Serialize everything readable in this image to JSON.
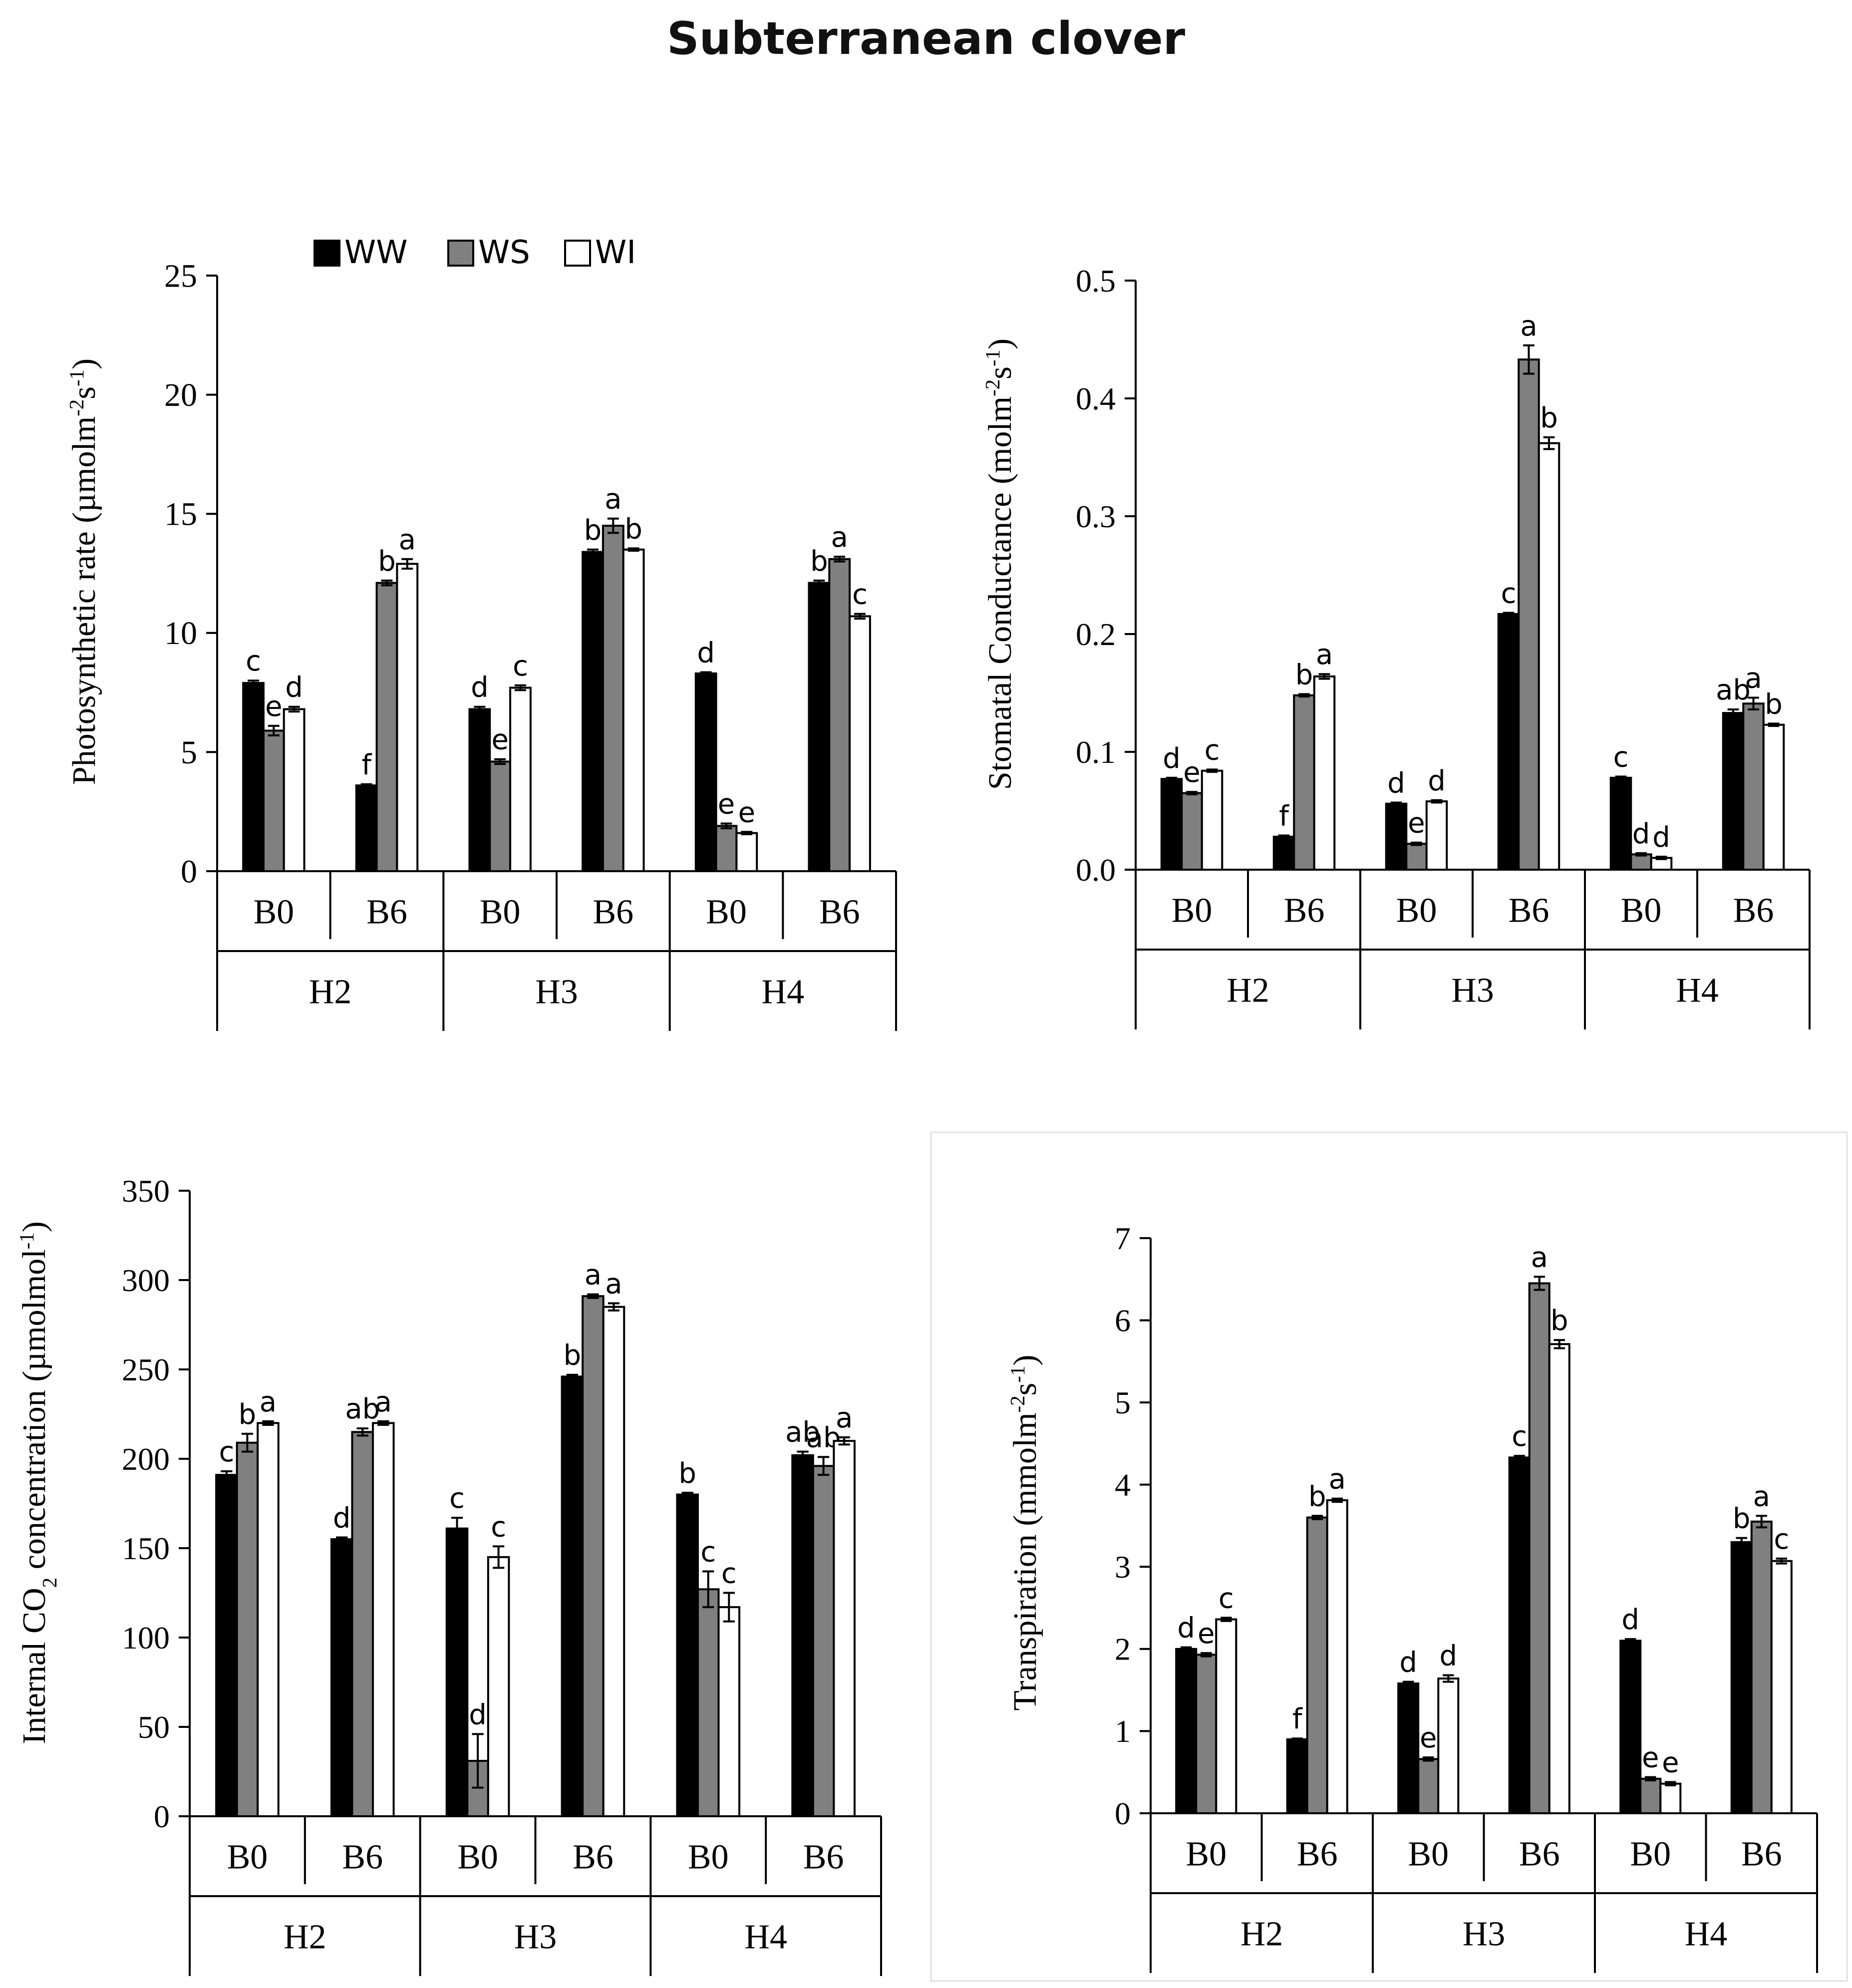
{
  "page": {
    "title": "Subterranean clover"
  },
  "colors": {
    "WW": "#000000",
    "WS": "#808080",
    "WI": "#ffffff",
    "axis": "#000000"
  },
  "legend": [
    {
      "key": "WW",
      "label": "WW"
    },
    {
      "key": "WS",
      "label": "WS"
    },
    {
      "key": "WI",
      "label": "WI"
    }
  ],
  "chart_data": [
    {
      "id": "photo",
      "type": "bar",
      "ylabel": "Photosynthetic rate (µmolm-2s-1)",
      "ylabel_parts": [
        "Photosynthetic rate (µmolm",
        "-2",
        "s",
        "-1",
        ")"
      ],
      "ylim": [
        0,
        25
      ],
      "yticks": [
        0,
        5,
        10,
        15,
        20,
        25
      ],
      "ytick_labels": [
        "0",
        "5",
        "10",
        "15",
        "20",
        "25"
      ],
      "groups": [
        "H2",
        "H3",
        "H4"
      ],
      "categories": [
        "B0",
        "B6",
        "B0",
        "B6",
        "B0",
        "B6"
      ],
      "series": [
        {
          "name": "WW",
          "values": [
            7.9,
            3.6,
            6.8,
            13.4,
            8.3,
            12.1
          ],
          "errors": [
            0.1,
            0.05,
            0.1,
            0.1,
            0.05,
            0.1
          ],
          "letters": [
            "c",
            "f",
            "d",
            "b",
            "d",
            "b"
          ]
        },
        {
          "name": "WS",
          "values": [
            5.9,
            12.1,
            4.6,
            14.5,
            1.9,
            13.1
          ],
          "errors": [
            0.2,
            0.1,
            0.1,
            0.3,
            0.1,
            0.1
          ],
          "letters": [
            "e",
            "b",
            "e",
            "a",
            "e",
            "a"
          ]
        },
        {
          "name": "WI",
          "values": [
            6.8,
            12.9,
            7.7,
            13.5,
            1.6,
            10.7
          ],
          "errors": [
            0.1,
            0.2,
            0.1,
            0.05,
            0.05,
            0.1
          ],
          "letters": [
            "d",
            "a",
            "c",
            "b",
            "e",
            "c"
          ]
        }
      ]
    },
    {
      "id": "stomatal",
      "type": "bar",
      "ylabel": "Stomatal Conductance (molm-2s-1)",
      "ylabel_parts": [
        "Stomatal Conductance (molm",
        "-2",
        "s",
        "-1",
        ")"
      ],
      "ylim": [
        0,
        0.5
      ],
      "yticks": [
        0,
        0.1,
        0.2,
        0.3,
        0.4,
        0.5
      ],
      "ytick_labels": [
        "0.0",
        "0.1",
        "0.2",
        "0.3",
        "0.4",
        "0.5"
      ],
      "groups": [
        "H2",
        "H3",
        "H4"
      ],
      "categories": [
        "B0",
        "B6",
        "B0",
        "B6",
        "B0",
        "B6"
      ],
      "series": [
        {
          "name": "WW",
          "values": [
            0.077,
            0.028,
            0.056,
            0.217,
            0.078,
            0.133
          ],
          "errors": [
            0.001,
            0.001,
            0.001,
            0.001,
            0.001,
            0.003
          ],
          "letters": [
            "d",
            "f",
            "d",
            "c",
            "c",
            "ab"
          ]
        },
        {
          "name": "WS",
          "values": [
            0.065,
            0.148,
            0.022,
            0.433,
            0.013,
            0.141
          ],
          "errors": [
            0.001,
            0.001,
            0.001,
            0.012,
            0.001,
            0.005
          ],
          "letters": [
            "e",
            "b",
            "e",
            "a",
            "d",
            "a"
          ]
        },
        {
          "name": "WI",
          "values": [
            0.084,
            0.164,
            0.058,
            0.362,
            0.01,
            0.123
          ],
          "errors": [
            0.001,
            0.002,
            0.001,
            0.005,
            0.001,
            0.001
          ],
          "letters": [
            "c",
            "a",
            "d",
            "b",
            "d",
            "b"
          ]
        }
      ]
    },
    {
      "id": "co2",
      "type": "bar",
      "ylabel": "Internal CO2 concentration (µmolmol-1)",
      "ylabel_parts": [
        "Internal CO",
        "2",
        " concentration  (µmolmol",
        "-1",
        ")"
      ],
      "ylim": [
        0,
        350
      ],
      "yticks": [
        0,
        50,
        100,
        150,
        200,
        250,
        300,
        350
      ],
      "ytick_labels": [
        "0",
        "50",
        "100",
        "150",
        "200",
        "250",
        "300",
        "350"
      ],
      "groups": [
        "H2",
        "H3",
        "H4"
      ],
      "categories": [
        "B0",
        "B6",
        "B0",
        "B6",
        "B0",
        "B6"
      ],
      "series": [
        {
          "name": "WW",
          "values": [
            191,
            155,
            161,
            246,
            180,
            202
          ],
          "errors": [
            2,
            1,
            6,
            1,
            1,
            2
          ],
          "letters": [
            "c",
            "d",
            "c",
            "b",
            "b",
            "ab"
          ]
        },
        {
          "name": "WS",
          "values": [
            209,
            215,
            31,
            291,
            127,
            196
          ],
          "errors": [
            5,
            2,
            15,
            1,
            10,
            5
          ],
          "letters": [
            "b",
            "ab",
            "d",
            "a",
            "c",
            "ab"
          ]
        },
        {
          "name": "WI",
          "values": [
            220,
            220,
            145,
            285,
            117,
            210
          ],
          "errors": [
            1,
            1,
            6,
            2,
            8,
            2
          ],
          "letters": [
            "a",
            "a",
            "c",
            "a",
            "c",
            "a"
          ]
        }
      ]
    },
    {
      "id": "transp",
      "type": "bar",
      "ylabel": "Transpiration (mmolm-2s-1)",
      "ylabel_parts": [
        "Transpiration (mmolm",
        "-2",
        "s",
        "-1",
        ")"
      ],
      "ylim": [
        0,
        7
      ],
      "yticks": [
        0,
        1,
        2,
        3,
        4,
        5,
        6,
        7
      ],
      "ytick_labels": [
        "0",
        "1",
        "2",
        "3",
        "4",
        "5",
        "6",
        "7"
      ],
      "groups": [
        "H2",
        "H3",
        "H4"
      ],
      "categories": [
        "B0",
        "B6",
        "B0",
        "B6",
        "B0",
        "B6"
      ],
      "series": [
        {
          "name": "WW",
          "values": [
            2.0,
            0.9,
            1.58,
            4.33,
            2.1,
            3.3
          ],
          "errors": [
            0.02,
            0.01,
            0.02,
            0.02,
            0.02,
            0.05
          ],
          "letters": [
            "d",
            "f",
            "d",
            "c",
            "d",
            "b"
          ]
        },
        {
          "name": "WS",
          "values": [
            1.93,
            3.6,
            0.66,
            6.45,
            0.42,
            3.55
          ],
          "errors": [
            0.02,
            0.02,
            0.02,
            0.08,
            0.02,
            0.07
          ],
          "letters": [
            "e",
            "b",
            "e",
            "a",
            "e",
            "a"
          ]
        },
        {
          "name": "WI",
          "values": [
            2.36,
            3.81,
            1.64,
            5.71,
            0.36,
            3.07
          ],
          "errors": [
            0.02,
            0.02,
            0.04,
            0.05,
            0.02,
            0.03
          ],
          "letters": [
            "c",
            "a",
            "d",
            "b",
            "e",
            "c"
          ]
        }
      ]
    }
  ]
}
